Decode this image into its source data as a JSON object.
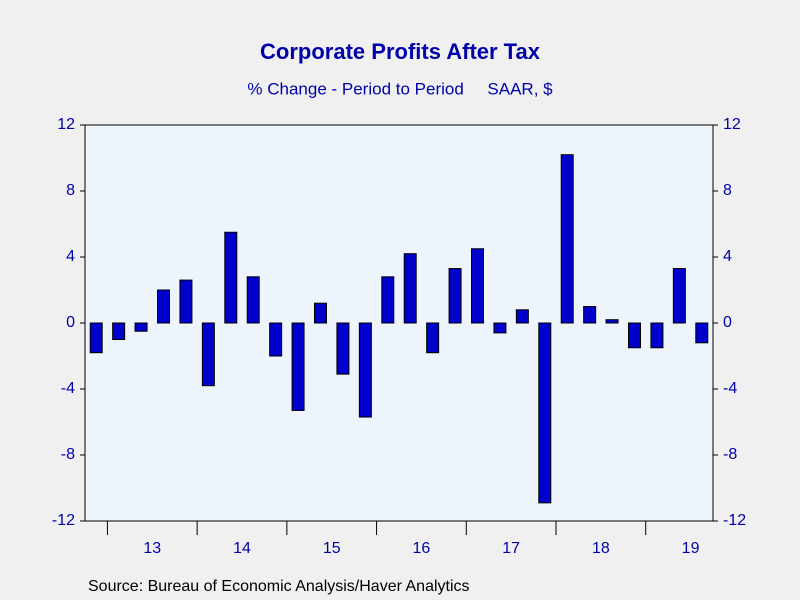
{
  "chart_data": {
    "type": "bar",
    "title": "Corporate Profits After Tax",
    "subtitle": "% Change - Period to Period     SAAR, $",
    "source": "Source:  Bureau of Economic Analysis/Haver Analytics",
    "categories": [
      null,
      null,
      null,
      "13",
      null,
      null,
      null,
      "14",
      null,
      null,
      null,
      "15",
      null,
      null,
      null,
      "16",
      null,
      null,
      null,
      "17",
      null,
      null,
      null,
      "18",
      null,
      null,
      null,
      "19"
    ],
    "values": [
      -1.8,
      -1.0,
      -0.5,
      2.0,
      2.6,
      -3.8,
      5.5,
      2.8,
      -2.0,
      -5.3,
      1.2,
      -3.1,
      -5.7,
      2.8,
      4.2,
      -1.8,
      3.3,
      4.5,
      -0.6,
      0.8,
      -10.9,
      10.2,
      1.0,
      0.2,
      -1.5,
      -1.5,
      3.3,
      -1.2
    ],
    "color": "#0000cc",
    "ylim": [
      -12,
      12
    ],
    "yticks": [
      -12,
      -8,
      -4,
      0,
      4,
      8,
      12
    ],
    "y2lim": [
      -12,
      12
    ],
    "y2ticks": [
      -12,
      -8,
      -4,
      0,
      4,
      8,
      12
    ],
    "grid": false
  }
}
